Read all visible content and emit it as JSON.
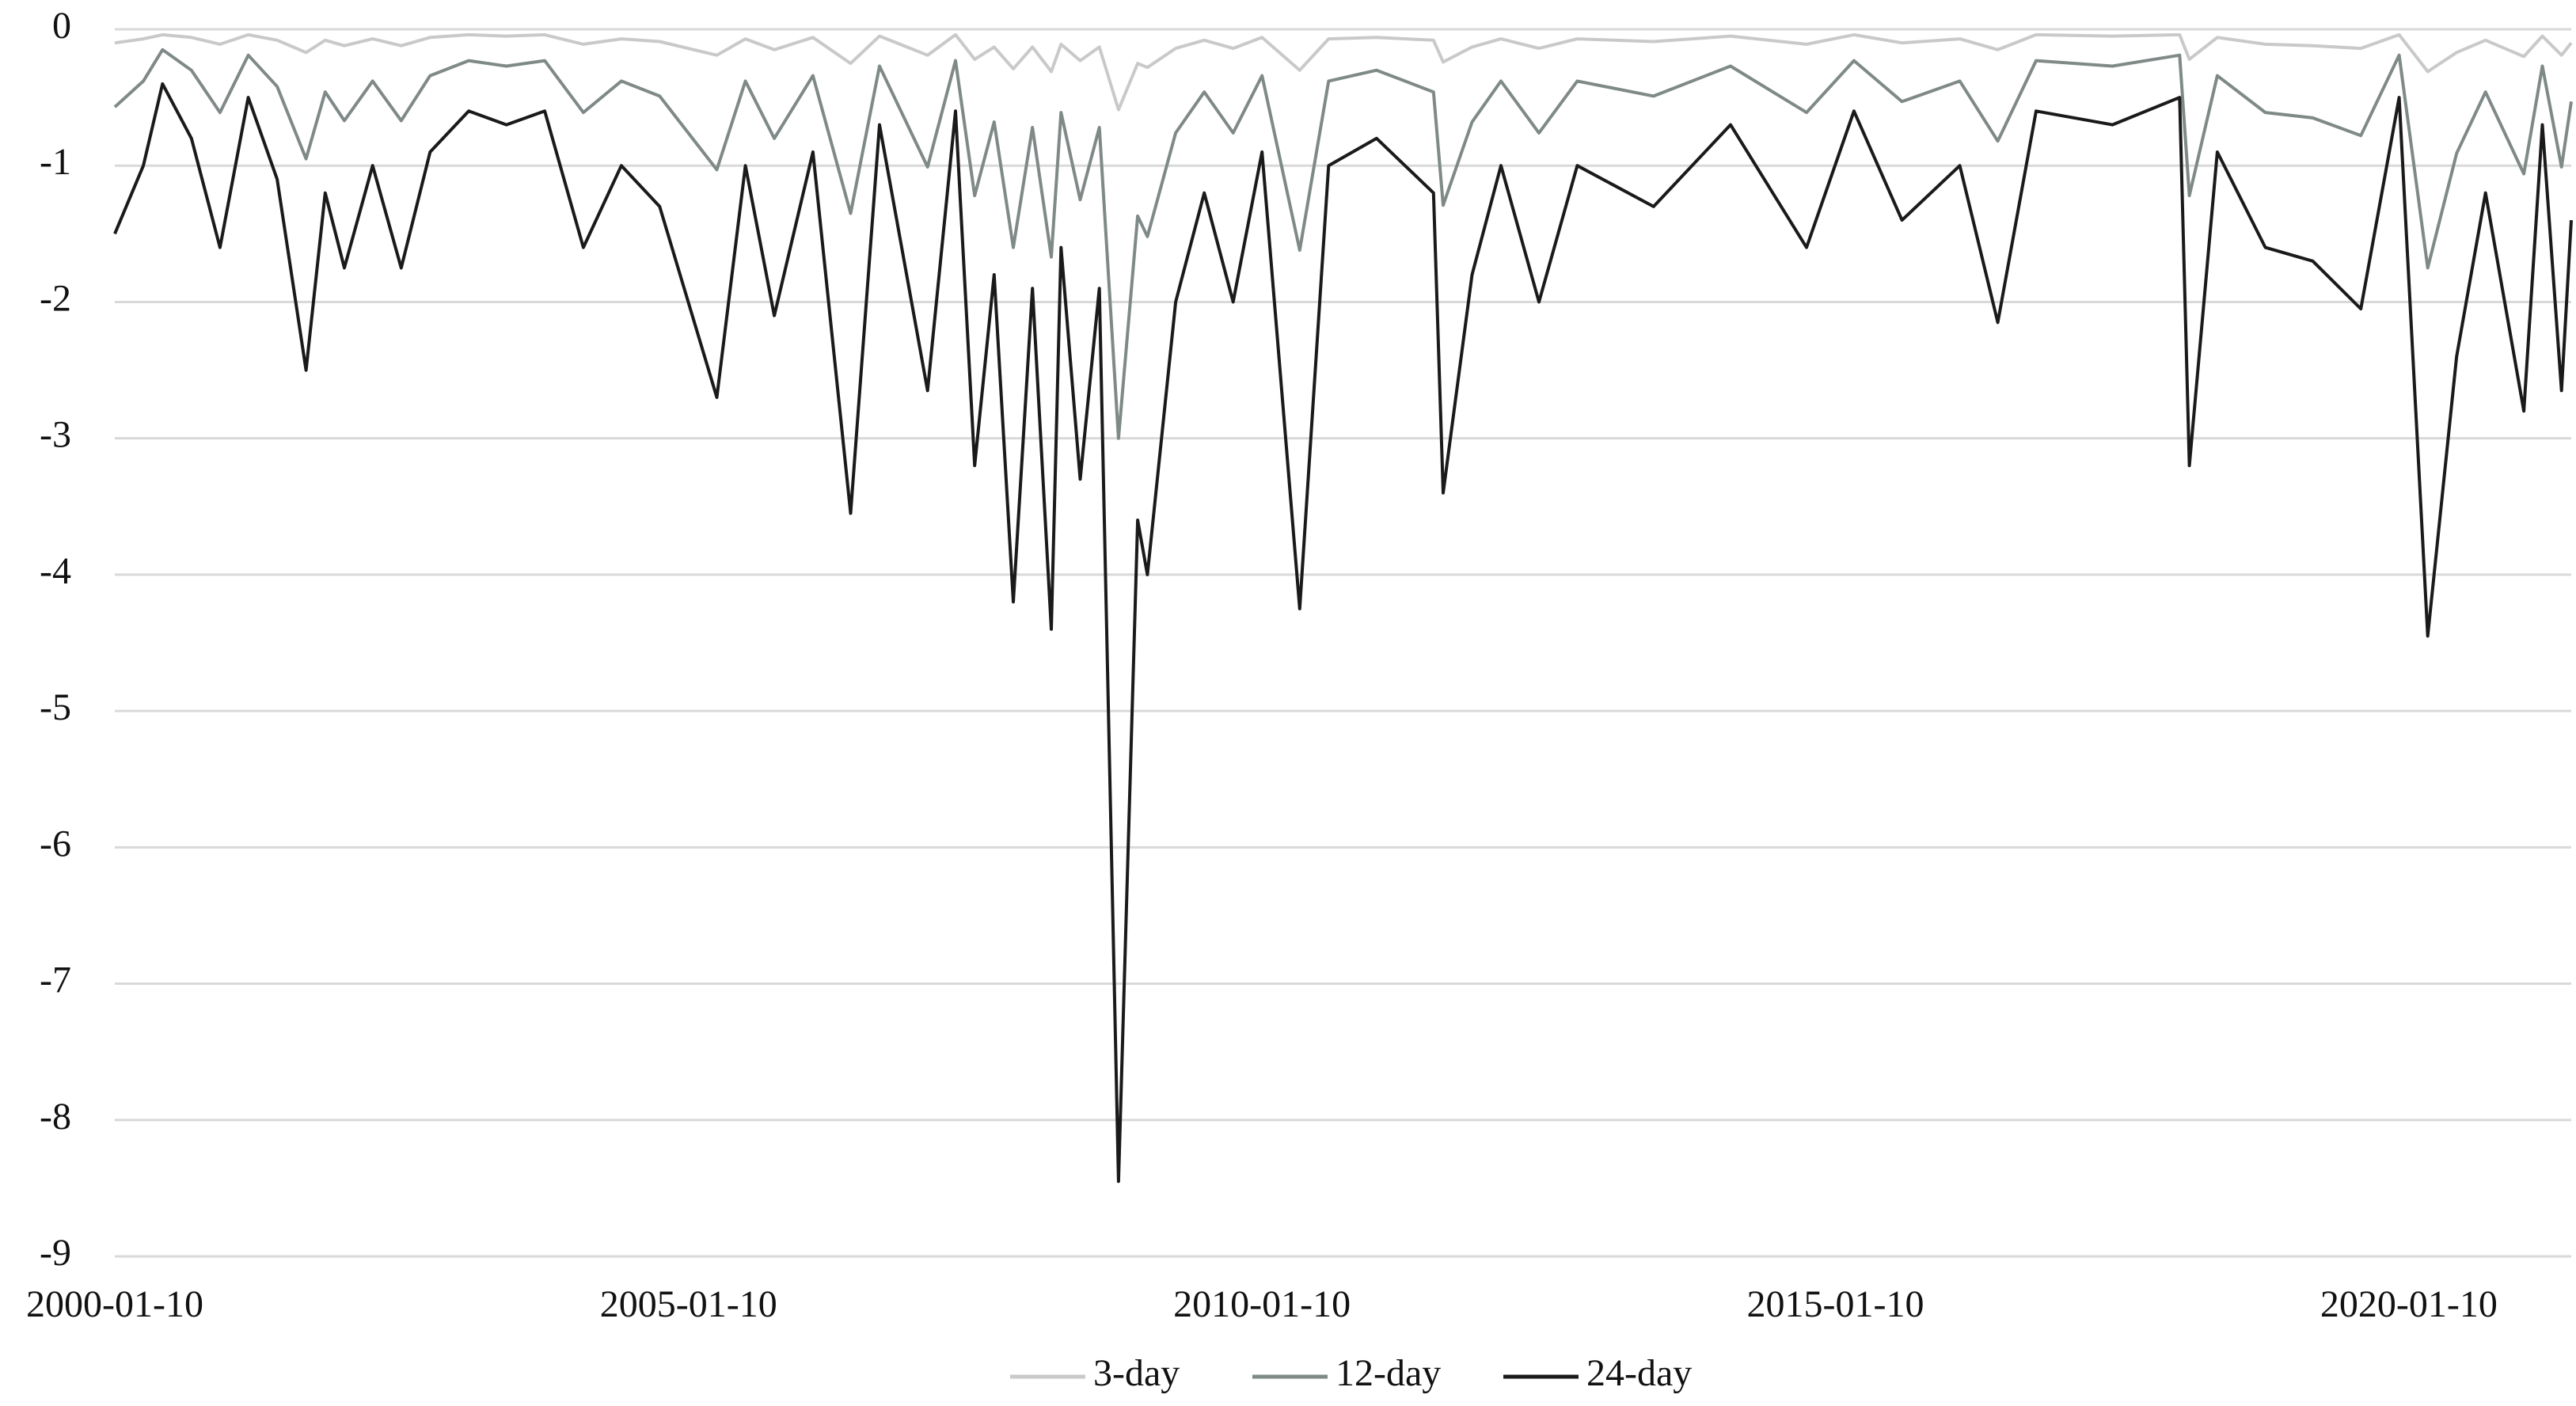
{
  "chart_data": {
    "type": "line",
    "x": [
      "2000-01-10",
      "2000-04-10",
      "2000-06-10",
      "2000-09-10",
      "2000-12-10",
      "2001-03-10",
      "2001-06-10",
      "2001-09-10",
      "2001-11-10",
      "2002-01-10",
      "2002-04-10",
      "2002-07-10",
      "2002-10-10",
      "2003-02-10",
      "2003-06-10",
      "2003-10-10",
      "2004-02-10",
      "2004-06-10",
      "2004-10-10",
      "2005-04-10",
      "2005-07-10",
      "2005-10-10",
      "2006-02-10",
      "2006-06-10",
      "2006-09-10",
      "2007-02-10",
      "2007-05-10",
      "2007-07-10",
      "2007-09-10",
      "2007-11-10",
      "2008-01-10",
      "2008-03-10",
      "2008-04-10",
      "2008-06-10",
      "2008-08-10",
      "2008-10-10",
      "2008-12-10",
      "2009-01-10",
      "2009-04-10",
      "2009-07-10",
      "2009-10-10",
      "2010-01-10",
      "2010-05-10",
      "2010-08-10",
      "2011-01-10",
      "2011-07-10",
      "2011-08-10",
      "2011-11-10",
      "2012-02-10",
      "2012-06-10",
      "2012-10-10",
      "2013-06-10",
      "2014-02-10",
      "2014-10-10",
      "2015-03-10",
      "2015-08-10",
      "2016-02-10",
      "2016-06-10",
      "2016-10-10",
      "2017-06-10",
      "2018-01-10",
      "2018-02-10",
      "2018-05-10",
      "2018-10-10",
      "2019-03-10",
      "2019-08-10",
      "2019-12-10",
      "2020-03-10",
      "2020-06-10",
      "2020-09-10",
      "2021-01-10",
      "2021-03-10",
      "2021-05-10",
      "2021-06-10"
    ],
    "series": [
      {
        "name": "3-day",
        "color": "#c9c9c9",
        "values": [
          -0.1,
          -0.07,
          -0.04,
          -0.06,
          -0.11,
          -0.04,
          -0.08,
          -0.17,
          -0.08,
          -0.12,
          -0.07,
          -0.12,
          -0.06,
          -0.04,
          -0.05,
          -0.04,
          -0.11,
          -0.07,
          -0.09,
          -0.19,
          -0.07,
          -0.15,
          -0.06,
          -0.25,
          -0.05,
          -0.19,
          -0.04,
          -0.22,
          -0.13,
          -0.29,
          -0.13,
          -0.31,
          -0.11,
          -0.23,
          -0.13,
          -0.59,
          -0.25,
          -0.28,
          -0.14,
          -0.08,
          -0.14,
          -0.06,
          -0.3,
          -0.07,
          -0.06,
          -0.08,
          -0.24,
          -0.13,
          -0.07,
          -0.14,
          -0.07,
          -0.09,
          -0.05,
          -0.11,
          -0.04,
          -0.1,
          -0.07,
          -0.15,
          -0.04,
          -0.05,
          -0.04,
          -0.22,
          -0.06,
          -0.11,
          -0.12,
          -0.14,
          -0.04,
          -0.31,
          -0.17,
          -0.08,
          -0.2,
          -0.05,
          -0.19,
          -0.1
        ]
      },
      {
        "name": "12-day",
        "color": "#7f8a88",
        "values": [
          -0.57,
          -0.38,
          -0.15,
          -0.3,
          -0.61,
          -0.19,
          -0.42,
          -0.95,
          -0.46,
          -0.67,
          -0.38,
          -0.67,
          -0.34,
          -0.23,
          -0.27,
          -0.23,
          -0.61,
          -0.38,
          -0.49,
          -1.03,
          -0.38,
          -0.8,
          -0.34,
          -1.35,
          -0.27,
          -1.01,
          -0.23,
          -1.22,
          -0.68,
          -1.6,
          -0.72,
          -1.67,
          -0.61,
          -1.25,
          -0.72,
          -3.0,
          -1.37,
          -1.52,
          -0.76,
          -0.46,
          -0.76,
          -0.34,
          -1.62,
          -0.38,
          -0.3,
          -0.46,
          -1.29,
          -0.68,
          -0.38,
          -0.76,
          -0.38,
          -0.49,
          -0.27,
          -0.61,
          -0.23,
          -0.53,
          -0.38,
          -0.82,
          -0.23,
          -0.27,
          -0.19,
          -1.22,
          -0.34,
          -0.61,
          -0.65,
          -0.78,
          -0.19,
          -1.75,
          -0.91,
          -0.46,
          -1.06,
          -0.27,
          -1.01,
          -0.53
        ]
      },
      {
        "name": "24-day",
        "color": "#1a1a1a",
        "values": [
          -1.5,
          -1.0,
          -0.4,
          -0.8,
          -1.6,
          -0.5,
          -1.1,
          -2.5,
          -1.2,
          -1.75,
          -1.0,
          -1.75,
          -0.9,
          -0.6,
          -0.7,
          -0.6,
          -1.6,
          -1.0,
          -1.3,
          -2.7,
          -1.0,
          -2.1,
          -0.9,
          -3.55,
          -0.7,
          -2.65,
          -0.6,
          -3.2,
          -1.8,
          -4.2,
          -1.9,
          -4.4,
          -1.6,
          -3.3,
          -1.9,
          -8.45,
          -3.6,
          -4.0,
          -2.0,
          -1.2,
          -2.0,
          -0.9,
          -4.25,
          -1.0,
          -0.8,
          -1.2,
          -3.4,
          -1.8,
          -1.0,
          -2.0,
          -1.0,
          -1.3,
          -0.7,
          -1.6,
          -0.6,
          -1.4,
          -1.0,
          -2.15,
          -0.6,
          -0.7,
          -0.5,
          -3.2,
          -0.9,
          -1.6,
          -1.7,
          -2.05,
          -0.5,
          -4.45,
          -2.4,
          -1.2,
          -2.8,
          -0.7,
          -2.65,
          -1.4
        ]
      }
    ],
    "xlim": [
      "2000-01-10",
      "2021-06-10"
    ],
    "xticks": [
      "2000-01-10",
      "2005-01-10",
      "2010-01-10",
      "2015-01-10",
      "2020-01-10"
    ],
    "ylim": [
      -9,
      0
    ],
    "yticks": [
      0,
      -1,
      -2,
      -3,
      -4,
      -5,
      -6,
      -7,
      -8,
      -9
    ],
    "grid": true,
    "legend": "bottom"
  }
}
